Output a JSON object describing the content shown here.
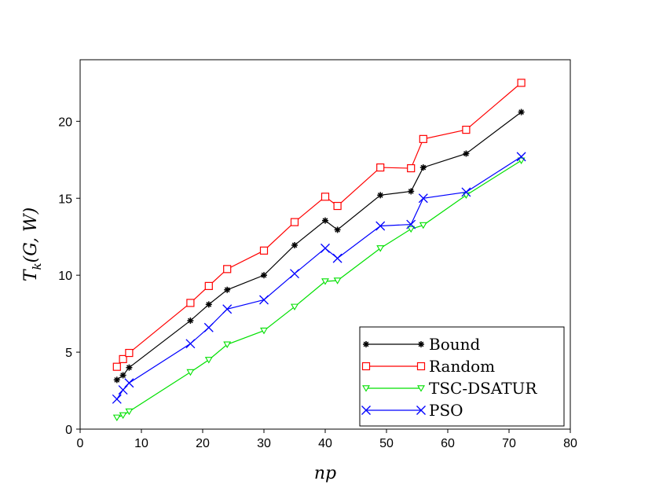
{
  "chart_data": {
    "type": "line",
    "title": "",
    "xlabel": "np",
    "ylabel": "T_k(G, W)",
    "xlim": [
      0,
      80
    ],
    "ylim": [
      0,
      24
    ],
    "x_ticks": [
      0,
      10,
      20,
      30,
      40,
      50,
      60,
      70,
      80
    ],
    "y_ticks": [
      0,
      5,
      10,
      15,
      20
    ],
    "grid": false,
    "legend_position": "bottom-right",
    "series": [
      {
        "name": "Bound",
        "color": "#000000",
        "marker": "asterisk",
        "x": [
          6,
          7,
          8,
          18,
          21,
          24,
          30,
          35,
          40,
          42,
          49,
          54,
          56,
          63,
          72
        ],
        "y": [
          3.2,
          3.5,
          4.0,
          7.05,
          8.1,
          9.05,
          10.0,
          11.95,
          13.55,
          12.95,
          15.2,
          15.45,
          17.0,
          17.9,
          20.6
        ]
      },
      {
        "name": "Random",
        "color": "#ff0000",
        "marker": "square",
        "x": [
          6,
          7,
          8,
          18,
          21,
          24,
          30,
          35,
          40,
          42,
          49,
          54,
          56,
          63,
          72
        ],
        "y": [
          4.05,
          4.55,
          4.95,
          8.2,
          9.3,
          10.4,
          11.6,
          13.45,
          15.1,
          14.5,
          17.0,
          16.95,
          18.85,
          19.45,
          22.5
        ]
      },
      {
        "name": "TSC-DSATUR",
        "color": "#00e000",
        "marker": "triangle-down",
        "x": [
          6,
          7,
          8,
          18,
          21,
          24,
          30,
          35,
          40,
          42,
          49,
          54,
          56,
          63,
          72
        ],
        "y": [
          0.75,
          0.9,
          1.15,
          3.7,
          4.5,
          5.5,
          6.4,
          7.95,
          9.6,
          9.65,
          11.75,
          13.0,
          13.25,
          15.2,
          17.45
        ]
      },
      {
        "name": "PSO",
        "color": "#0000ff",
        "marker": "x",
        "x": [
          6,
          7,
          8,
          18,
          21,
          24,
          30,
          35,
          40,
          42,
          49,
          54,
          56,
          63,
          72
        ],
        "y": [
          1.95,
          2.55,
          3.0,
          5.55,
          6.6,
          7.8,
          8.4,
          10.1,
          11.75,
          11.1,
          13.2,
          13.3,
          15.0,
          15.4,
          17.7
        ]
      }
    ]
  }
}
